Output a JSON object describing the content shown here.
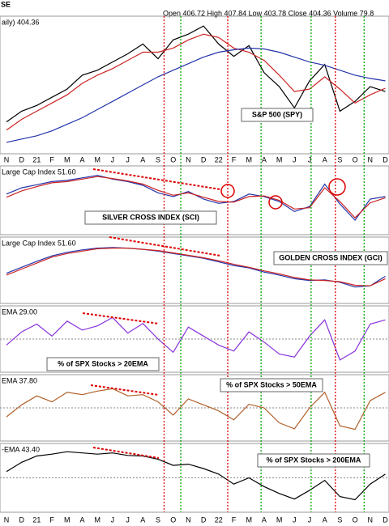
{
  "header": {
    "symbol": "SE",
    "quote": "Open 406.72  High 407.84  Low 403.78  Close 404.36  Volume 79.8",
    "price_label": "aily) 404.36"
  },
  "signal_lines": [
    {
      "x": 10.4,
      "color": "#dd0000"
    },
    {
      "x": 11.5,
      "color": "#00aa00"
    },
    {
      "x": 14.6,
      "color": "#dd0000"
    },
    {
      "x": 16.8,
      "color": "#00aa00"
    },
    {
      "x": 20.1,
      "color": "#00aa00"
    },
    {
      "x": 21.7,
      "color": "#dd0000"
    },
    {
      "x": 23.6,
      "color": "#00aa00"
    }
  ],
  "chart_data": [
    {
      "type": "line",
      "annotation": "S&P 500 (SPY)",
      "annotation_color": "#000000",
      "categories": [
        "N",
        "D",
        "21",
        "F",
        "M",
        "A",
        "M",
        "J",
        "J",
        "A",
        "S",
        "O",
        "N",
        "D",
        "22",
        "F",
        "M",
        "A",
        "M",
        "J",
        "J",
        "A",
        "S",
        "O",
        "N",
        "D"
      ],
      "ylim": [
        320,
        480
      ],
      "series": [
        {
          "color": "#000000",
          "values": [
            355,
            368,
            375,
            385,
            395,
            412,
            418,
            428,
            438,
            450,
            432,
            455,
            462,
            472,
            450,
            435,
            448,
            415,
            398,
            372,
            405,
            425,
            368,
            380,
            398,
            392
          ]
        },
        {
          "color": "#cc2222",
          "values": [
            345,
            358,
            368,
            378,
            388,
            402,
            412,
            420,
            430,
            440,
            440,
            445,
            455,
            462,
            458,
            445,
            440,
            430,
            412,
            392,
            395,
            410,
            395,
            378,
            388,
            396
          ]
        },
        {
          "color": "#2233aa",
          "values": [
            330,
            334,
            338,
            344,
            352,
            360,
            370,
            380,
            390,
            400,
            410,
            418,
            426,
            434,
            440,
            443,
            445,
            444,
            440,
            434,
            428,
            424,
            418,
            412,
            408,
            405
          ]
        }
      ]
    },
    {
      "type": "line",
      "label": "Large Cap Index 51.60",
      "annotation": "SILVER CROSS INDEX (SCI)",
      "annotation_color": "#2233cc",
      "ylim": [
        0,
        100
      ],
      "series": [
        {
          "color": "#2233aa",
          "values": [
            60,
            70,
            75,
            80,
            82,
            86,
            90,
            84,
            80,
            74,
            62,
            56,
            64,
            52,
            45,
            48,
            60,
            56,
            48,
            32,
            40,
            76,
            44,
            18,
            52,
            56
          ]
        },
        {
          "color": "#cc2222",
          "values": [
            55,
            65,
            72,
            78,
            80,
            84,
            88,
            85,
            81,
            76,
            66,
            58,
            62,
            55,
            48,
            47,
            56,
            57,
            50,
            36,
            38,
            70,
            48,
            22,
            46,
            54
          ]
        }
      ]
    },
    {
      "type": "line",
      "label": "Large Cap Index 51.60",
      "annotation": "GOLDEN CROSS INDEX (GCI)",
      "annotation_color": "#2233cc",
      "ylim": [
        0,
        100
      ],
      "series": [
        {
          "color": "#2233aa",
          "values": [
            45,
            55,
            65,
            74,
            80,
            84,
            87,
            88,
            87,
            85,
            82,
            78,
            74,
            70,
            64,
            58,
            54,
            47,
            42,
            36,
            33,
            34,
            30,
            22,
            24,
            40
          ]
        },
        {
          "color": "#cc2222",
          "values": [
            42,
            52,
            62,
            72,
            78,
            82,
            86,
            87,
            87,
            85,
            83,
            79,
            75,
            71,
            66,
            60,
            55,
            49,
            44,
            38,
            34,
            33,
            31,
            25,
            24,
            36
          ]
        }
      ]
    },
    {
      "type": "line",
      "label": "EMA 29.00",
      "annotation": "% of SPX Stocks > 20EMA",
      "annotation_color": "#7722cc",
      "ylim": [
        0,
        100
      ],
      "reference": 50,
      "series": [
        {
          "color": "#8833dd",
          "values": [
            40,
            62,
            75,
            55,
            80,
            65,
            72,
            86,
            60,
            76,
            50,
            28,
            70,
            55,
            40,
            30,
            62,
            45,
            25,
            20,
            55,
            82,
            15,
            30,
            75,
            82
          ]
        }
      ]
    },
    {
      "type": "line",
      "label": "EMA 37.80",
      "annotation": "% of SPX Stocks > 50EMA",
      "annotation_color": "#882222",
      "ylim": [
        0,
        100
      ],
      "reference": 50,
      "series": [
        {
          "color": "#b0602a",
          "values": [
            35,
            55,
            70,
            60,
            76,
            72,
            78,
            82,
            70,
            72,
            60,
            38,
            65,
            55,
            45,
            30,
            56,
            50,
            25,
            15,
            50,
            76,
            20,
            14,
            62,
            76
          ]
        }
      ]
    },
    {
      "type": "line",
      "label": "-EMA 43.40",
      "annotation": "% of SPX Stocks > 200EMA",
      "annotation_color": "#000000",
      "categories": [
        "N",
        "D",
        "21",
        "F",
        "M",
        "A",
        "M",
        "J",
        "J",
        "A",
        "S",
        "O",
        "N",
        "D",
        "22",
        "F",
        "M",
        "A",
        "M",
        "J",
        "J",
        "A",
        "S",
        "O",
        "N",
        "D"
      ],
      "ylim": [
        0,
        100
      ],
      "reference": 50,
      "series": [
        {
          "color": "#000000",
          "values": [
            60,
            75,
            85,
            88,
            92,
            90,
            88,
            90,
            86,
            85,
            80,
            70,
            72,
            65,
            56,
            40,
            50,
            36,
            25,
            16,
            30,
            46,
            20,
            15,
            40,
            56
          ]
        }
      ]
    }
  ]
}
